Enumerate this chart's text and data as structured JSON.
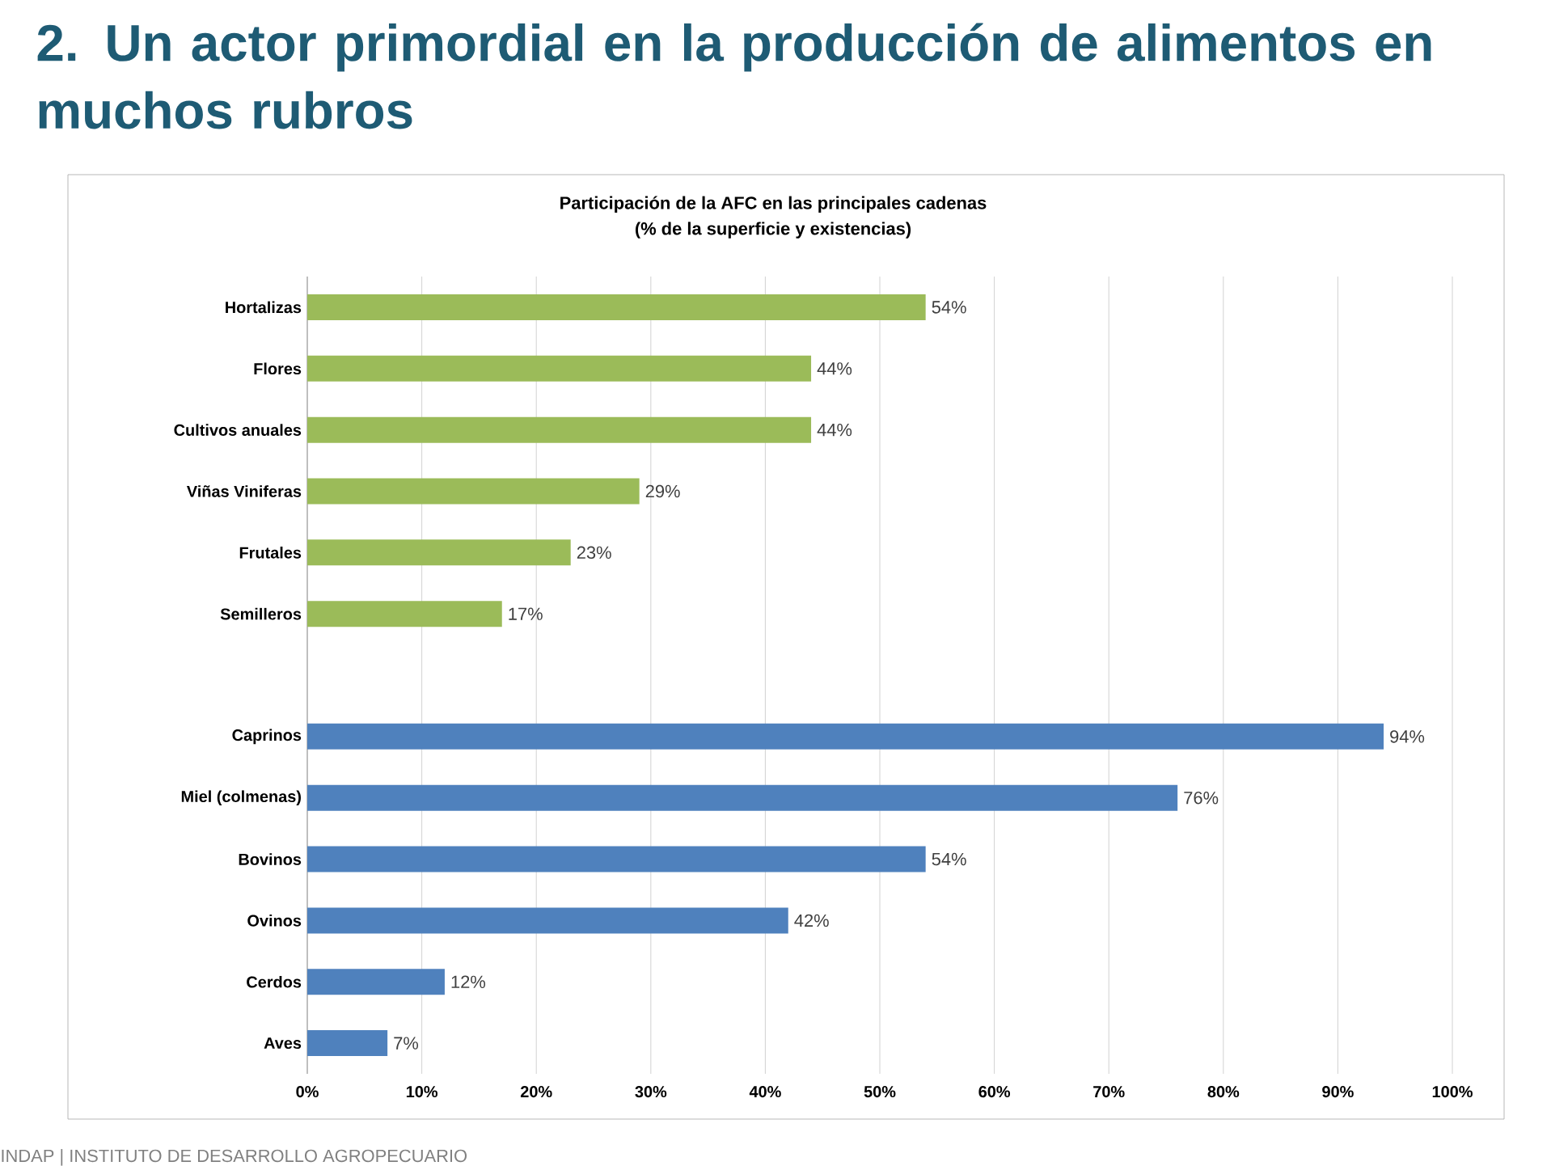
{
  "chart_data": {
    "type": "bar",
    "orientation": "horizontal",
    "title": "2. Un actor primordial en la producción de alimentos en muchos rubros",
    "subtitle": "Participación de la AFC  en las principales cadenas",
    "annotations": [
      "(% de la superficie y existencias)",
      "INDAP | INSTITUTO DE DESARROLLO AGROPECUARIO"
    ],
    "categories": [
      "Hortalizas",
      "Flores",
      "Cultivos anuales",
      "Viñas Viniferas",
      "Frutales",
      "Semilleros",
      null,
      "Caprinos",
      "Miel (colmenas)",
      "Bovinos",
      "Ovinos",
      "Cerdos",
      "Aves"
    ],
    "values": [
      54,
      44,
      44,
      29,
      23,
      17,
      null,
      94,
      76,
      54,
      42,
      12,
      7
    ],
    "value_labels": [
      "54%",
      "44%",
      "44%",
      "29%",
      "23%",
      "17%",
      null,
      "94%",
      "76%",
      "54%",
      "42%",
      "12%",
      "7%"
    ],
    "colors": [
      "#9bbb59",
      "#9bbb59",
      "#9bbb59",
      "#9bbb59",
      "#9bbb59",
      "#9bbb59",
      null,
      "#4f81bd",
      "#4f81bd",
      "#4f81bd",
      "#4f81bd",
      "#4f81bd",
      "#4f81bd"
    ],
    "xlim": [
      0,
      100
    ],
    "xticks": [
      {
        "value": 0,
        "label": "0%"
      },
      {
        "value": 10,
        "label": "10%"
      },
      {
        "value": 20,
        "label": "20%"
      },
      {
        "value": 30,
        "label": "30%"
      },
      {
        "value": 40,
        "label": "40%"
      },
      {
        "value": 50,
        "label": "50%"
      },
      {
        "value": 60,
        "label": "60%"
      },
      {
        "value": 70,
        "label": "70%"
      },
      {
        "value": 80,
        "label": "80%"
      },
      {
        "value": 90,
        "label": "90%"
      },
      {
        "value": 100,
        "label": "100%"
      }
    ],
    "grid": "x"
  }
}
